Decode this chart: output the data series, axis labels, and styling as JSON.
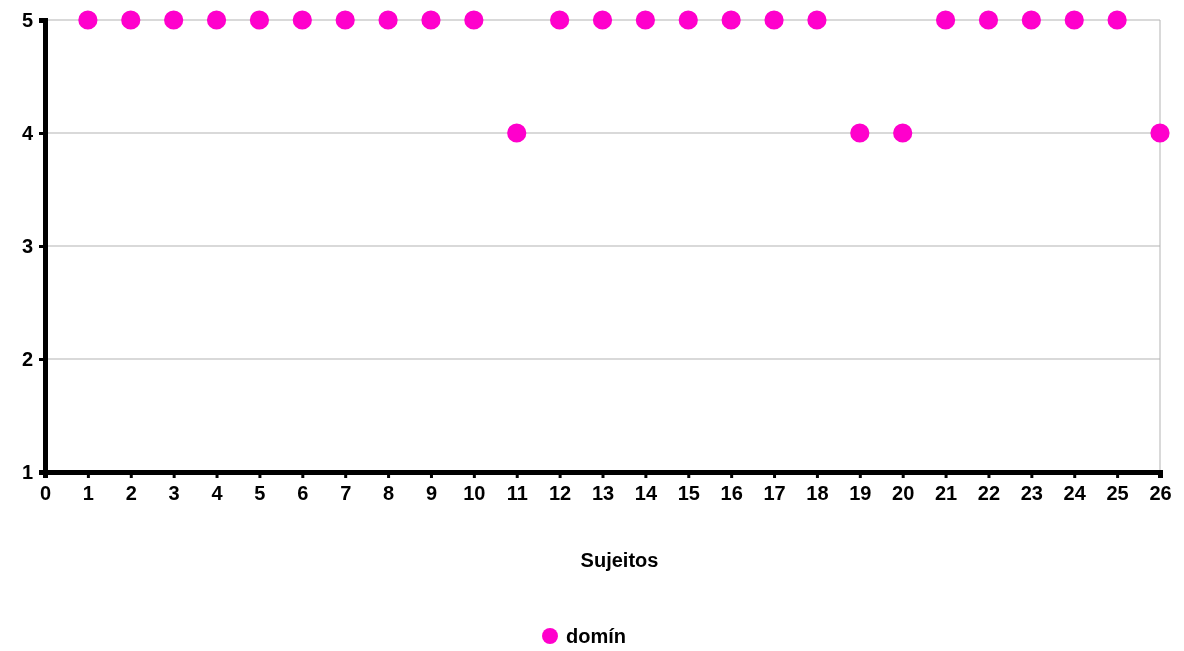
{
  "chart_data": {
    "type": "scatter",
    "xlabel": "Sujeitos",
    "x": [
      1,
      2,
      3,
      4,
      5,
      6,
      7,
      8,
      9,
      10,
      11,
      12,
      13,
      14,
      15,
      16,
      17,
      18,
      19,
      20,
      21,
      22,
      23,
      24,
      25,
      26
    ],
    "series": [
      {
        "name": "domín",
        "color": "#ff00cc",
        "values": [
          5,
          5,
          5,
          5,
          5,
          5,
          5,
          5,
          5,
          5,
          4,
          5,
          5,
          5,
          5,
          5,
          5,
          5,
          4,
          4,
          5,
          5,
          5,
          5,
          5,
          4
        ]
      }
    ],
    "xlim": [
      0,
      26
    ],
    "xticks": [
      0,
      1,
      2,
      3,
      4,
      5,
      6,
      7,
      8,
      9,
      10,
      11,
      12,
      13,
      14,
      15,
      16,
      17,
      18,
      19,
      20,
      21,
      22,
      23,
      24,
      25,
      26
    ],
    "ylim": [
      1,
      5
    ],
    "yticks": [
      1,
      2,
      3,
      4,
      5
    ],
    "grid": "y",
    "legend": "bottom",
    "marker": "circle"
  }
}
